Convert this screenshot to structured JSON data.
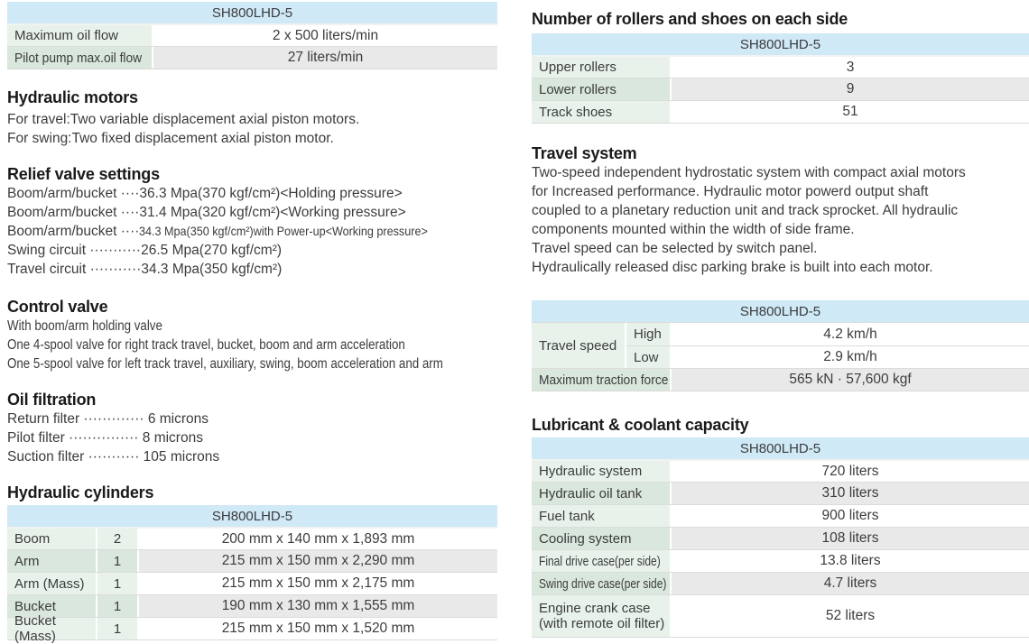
{
  "model": "SH800LHD-5",
  "colors": {
    "header_blue": "#cfe9f7",
    "label_green_light": "#e8f2ea",
    "label_green_dark": "#d9e7dc",
    "row_white": "#ffffff",
    "row_gray": "#e9e9e9"
  },
  "left": {
    "pump_table": {
      "header": "SH800LHD-5",
      "rows": [
        {
          "label": "Maximum oil flow",
          "value": "2 x 500 liters/min"
        },
        {
          "label": "Pilot pump max.oil flow",
          "value": "27 liters/min"
        }
      ]
    },
    "hydraulic_motors": {
      "title": "Hydraulic motors",
      "lines": [
        "For travel:Two variable displacement axial piston motors.",
        "For swing:Two fixed displacement axial piston motor."
      ]
    },
    "relief_valve": {
      "title": "Relief valve settings",
      "lines": [
        {
          "pre": "Boom/arm/bucket ····",
          "val": "36.3 Mpa(370 kgf/cm²)<Holding pressure>"
        },
        {
          "pre": "Boom/arm/bucket ····",
          "val": "31.4 Mpa(320 kgf/cm²)<Working pressure>"
        },
        {
          "pre": "Boom/arm/bucket ····",
          "val": "34.3 Mpa(350 kgf/cm²)with Power-up<Working pressure>"
        },
        {
          "pre": "Swing circuit ···········",
          "val": "26.5 Mpa(270 kgf/cm²)"
        },
        {
          "pre": "Travel circuit ···········",
          "val": "34.3 Mpa(350 kgf/cm²)"
        }
      ]
    },
    "control_valve": {
      "title": "Control valve",
      "lines": [
        "With boom/arm holding valve",
        "One 4-spool valve for right track travel, bucket, boom and arm acceleration",
        "One 5-spool valve for left track travel, auxiliary, swing, boom acceleration and arm"
      ]
    },
    "oil_filtration": {
      "title": "Oil filtration",
      "lines": [
        "Return filter ············· 6 microns",
        "Pilot filter ··············· 8 microns",
        "Suction filter ··········· 105 microns"
      ]
    },
    "cylinders": {
      "title": "Hydraulic cylinders",
      "header": "SH800LHD-5",
      "rows": [
        {
          "label": "Boom",
          "qty": "2",
          "value": "200 mm x 140 mm x 1,893 mm"
        },
        {
          "label": "Arm",
          "qty": "1",
          "value": "215 mm x 150 mm x 2,290 mm"
        },
        {
          "label": "Arm (Mass)",
          "qty": "1",
          "value": "215 mm x 150 mm x 2,175 mm"
        },
        {
          "label": "Bucket",
          "qty": "1",
          "value": "190 mm x 130 mm x 1,555 mm"
        },
        {
          "label": "Bucket (Mass)",
          "qty": "1",
          "value": "215 mm x 150 mm x 1,520 mm"
        }
      ]
    }
  },
  "right": {
    "rollers": {
      "title": "Number of rollers and shoes on each side",
      "header": "SH800LHD-5",
      "rows": [
        {
          "label": "Upper rollers",
          "value": "3"
        },
        {
          "label": "Lower rollers",
          "value": "9"
        },
        {
          "label": "Track shoes",
          "value": "51"
        }
      ]
    },
    "travel_system": {
      "title": "Travel system",
      "lines": [
        "Two-speed independent hydrostatic system with compact axial motors",
        "for Increased performance. Hydraulic motor powerd output shaft",
        "coupled to a planetary reduction unit and track sprocket. All hydraulic",
        "components mounted within the width of side frame.",
        "Travel speed can be selected by switch panel.",
        "Hydraulically released disc parking brake is built into each motor."
      ]
    },
    "travel_table": {
      "header": "SH800LHD-5",
      "speed_label": "Travel speed",
      "high_label": "High",
      "high_value": "4.2 km/h",
      "low_label": "Low",
      "low_value": "2.9 km/h",
      "traction_label": "Maximum traction force",
      "traction_value": "565 kN · 57,600 kgf"
    },
    "lubricant": {
      "title": "Lubricant & coolant capacity",
      "header": "SH800LHD-5",
      "rows": [
        {
          "label": "Hydraulic system",
          "value": "720 liters"
        },
        {
          "label": "Hydraulic oil tank",
          "value": "310 liters"
        },
        {
          "label": "Fuel tank",
          "value": "900 liters"
        },
        {
          "label": "Cooling system",
          "value": "108 liters"
        },
        {
          "label": "Final drive case(per side)",
          "value": "13.8 liters"
        },
        {
          "label": "Swing drive case(per side)",
          "value": "4.7 liters"
        },
        {
          "label": "Engine crank case\n(with remote oil filter)",
          "value": "52 liters"
        }
      ]
    }
  }
}
